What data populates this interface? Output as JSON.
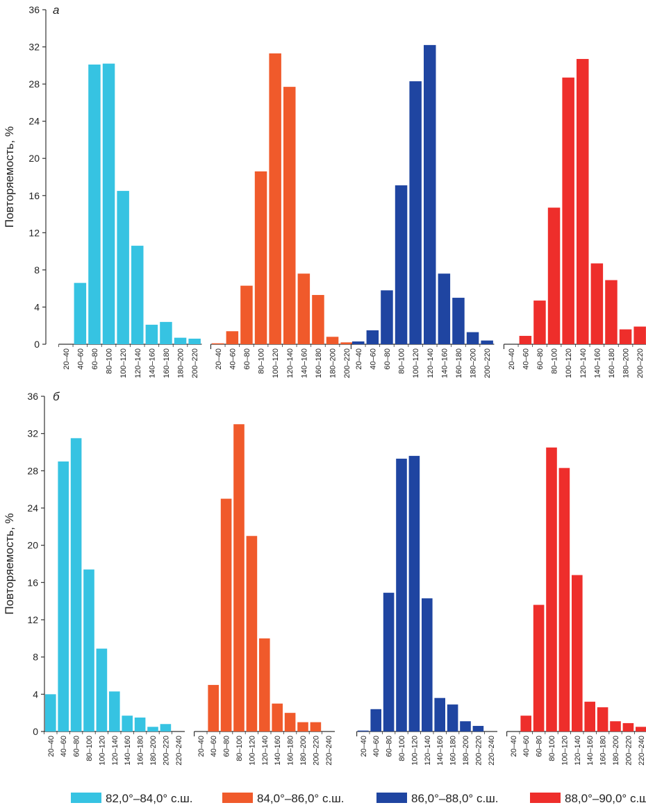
{
  "colors": {
    "s1": "#36c3e2",
    "s2": "#f05a2b",
    "s3": "#1f45a1",
    "s4": "#ee2e2b",
    "axis": "#333333"
  },
  "legend": [
    {
      "label": "82,0°–84,0° с.ш.",
      "color": "#36c3e2"
    },
    {
      "label": "84,0°–86,0° с.ш.",
      "color": "#f05a2b"
    },
    {
      "label": "86,0°–88,0° с.ш.",
      "color": "#1f45a1"
    },
    {
      "label": "88,0°–90,0° с.ш.",
      "color": "#ee2e2b"
    }
  ],
  "chart_data": [
    {
      "type": "bar",
      "panel_label": "а",
      "ylabel": "Повторяемость, %",
      "ylim": [
        0,
        36
      ],
      "yticks": [
        0,
        4,
        8,
        12,
        16,
        20,
        24,
        28,
        32,
        36
      ],
      "grid": false,
      "legend_position": "bottom",
      "groups": [
        {
          "name": "82,0°–84,0° с.ш.",
          "color": "#36c3e2",
          "categories": [
            "20–40",
            "40–60",
            "60–80",
            "80–100",
            "100–120",
            "120–140",
            "140–160",
            "160–180",
            "180–200",
            "200–220"
          ],
          "values": [
            0,
            6.6,
            30.1,
            30.2,
            16.5,
            10.6,
            2.1,
            2.4,
            0.7,
            0.6
          ]
        },
        {
          "name": "84,0°–86,0° с.ш.",
          "color": "#f05a2b",
          "categories": [
            "20–40",
            "40–60",
            "60–80",
            "80–100",
            "100–120",
            "120–140",
            "140–160",
            "160–180",
            "180–200",
            "200–220"
          ],
          "values": [
            0.1,
            1.4,
            6.3,
            18.6,
            31.3,
            27.7,
            7.6,
            5.3,
            0.8,
            0.2
          ]
        },
        {
          "name": "86,0°–88,0° с.ш.",
          "color": "#1f45a1",
          "categories": [
            "20–40",
            "40–60",
            "60–80",
            "80–100",
            "100–120",
            "120–140",
            "140–160",
            "160–180",
            "180–200",
            "200–220"
          ],
          "values": [
            0.3,
            1.5,
            5.8,
            17.1,
            28.3,
            32.2,
            7.6,
            5.0,
            1.3,
            0.4
          ]
        },
        {
          "name": "88,0°–90,0° с.ш.",
          "color": "#ee2e2b",
          "categories": [
            "20–40",
            "40–60",
            "60–80",
            "80–100",
            "100–120",
            "120–140",
            "140–160",
            "160–180",
            "180–200",
            "200–220"
          ],
          "values": [
            0,
            0.9,
            4.7,
            14.7,
            28.7,
            30.7,
            8.7,
            6.9,
            1.6,
            1.9
          ]
        }
      ]
    },
    {
      "type": "bar",
      "panel_label": "б",
      "ylabel": "Повторяемость, %",
      "ylim": [
        0,
        36
      ],
      "yticks": [
        0,
        4,
        8,
        12,
        16,
        20,
        24,
        28,
        32,
        36
      ],
      "grid": false,
      "legend_position": "bottom",
      "groups": [
        {
          "name": "82,0°–84,0° с.ш.",
          "color": "#36c3e2",
          "categories": [
            "20–40",
            "40–60",
            "60–80",
            "80–100",
            "100–120",
            "120–140",
            "140–160",
            "160–180",
            "180–200",
            "200–220",
            "220–240"
          ],
          "values": [
            4.0,
            29.0,
            31.5,
            17.4,
            8.9,
            4.3,
            1.7,
            1.5,
            0.5,
            0.8,
            0
          ]
        },
        {
          "name": "84,0°–86,0° с.ш.",
          "color": "#f05a2b",
          "categories": [
            "20–40",
            "40–60",
            "60–80",
            "80–100",
            "100–120",
            "120–140",
            "140–160",
            "160–180",
            "180–200",
            "200–220",
            "220–240"
          ],
          "values": [
            0,
            5.0,
            25.0,
            33.0,
            21.0,
            10.0,
            3.0,
            2.0,
            1.0,
            1.0,
            0
          ]
        },
        {
          "name": "86,0°–88,0° с.ш.",
          "color": "#1f45a1",
          "categories": [
            "20–40",
            "40–60",
            "60–80",
            "80–100",
            "100–120",
            "120–140",
            "140–160",
            "160–180",
            "180–200",
            "200–220",
            "220–240"
          ],
          "values": [
            0.1,
            2.4,
            14.9,
            29.3,
            29.6,
            14.3,
            3.6,
            2.9,
            1.1,
            0.6,
            0
          ]
        },
        {
          "name": "88,0°–90,0° с.ш.",
          "color": "#ee2e2b",
          "categories": [
            "20–40",
            "40–60",
            "60–80",
            "80–100",
            "100–120",
            "120–140",
            "140–160",
            "160–180",
            "180–200",
            "200–220",
            "220–240"
          ],
          "values": [
            0,
            1.7,
            13.6,
            30.5,
            28.3,
            16.8,
            3.2,
            2.6,
            1.1,
            0.9,
            0.5
          ]
        }
      ]
    }
  ]
}
